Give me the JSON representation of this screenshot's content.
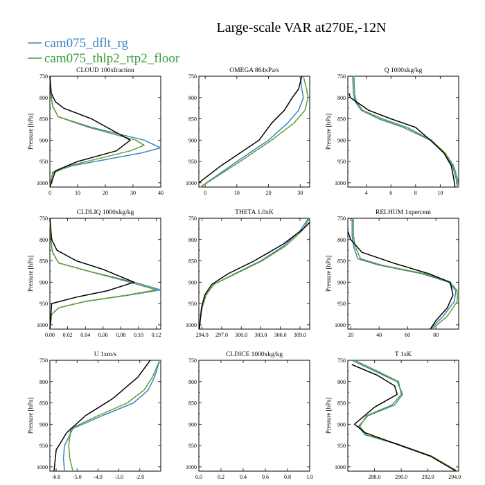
{
  "figure": {
    "title": "Large-scale VAR at270E,-12N",
    "legend": [
      {
        "label": "cam075_dflt_rg",
        "color": "#3b84bf"
      },
      {
        "label": "cam075_thlp2_rtp2_floor",
        "color": "#3a9a3a"
      }
    ]
  },
  "colors": {
    "series1": "#3b84bf",
    "series2": "#3a9a3a",
    "series2_dash": "#d4a017",
    "reference": "#000000"
  },
  "chart_data": [
    {
      "type": "line",
      "title": "CLOUD  100xfraction",
      "ylabel": "Pressure [hPa]",
      "xlim": [
        0,
        40
      ],
      "ylim": [
        1010,
        750
      ],
      "ylim_inverted": true,
      "xticks": [
        0,
        10,
        20,
        30,
        40
      ],
      "xtick_labels": [
        "0",
        "10",
        "20",
        "30",
        "40"
      ],
      "yticks": [
        750,
        800,
        850,
        900,
        950,
        1000
      ],
      "ytick_labels": [
        "750",
        "800",
        "850",
        "900",
        "950",
        "1000"
      ],
      "series": [
        {
          "name": "cam075_dflt_rg",
          "color": "#3b84bf",
          "x": [
            0,
            0.5,
            1,
            3,
            15,
            34,
            40,
            33,
            8,
            1,
            0
          ],
          "y": [
            750,
            800,
            820,
            845,
            870,
            900,
            918,
            930,
            960,
            975,
            1010
          ]
        },
        {
          "name": "cam075_thlp2_rtp2_floor",
          "color": "#3a9a3a",
          "dash": true,
          "x": [
            0,
            0.5,
            1,
            3,
            14,
            31,
            34,
            29,
            7,
            1,
            0
          ],
          "y": [
            750,
            800,
            820,
            845,
            870,
            900,
            912,
            925,
            960,
            978,
            1010
          ]
        },
        {
          "color": "#000000",
          "x": [
            0,
            0.5,
            2,
            5,
            15,
            29,
            24,
            10,
            2,
            0
          ],
          "y": [
            750,
            790,
            810,
            825,
            850,
            900,
            925,
            950,
            972,
            1010
          ]
        }
      ]
    },
    {
      "type": "line",
      "title": "OMEGA  864xPa/s",
      "ylabel": "",
      "xlim": [
        -2,
        33
      ],
      "ylim": [
        1010,
        750
      ],
      "ylim_inverted": true,
      "xticks": [
        0,
        10,
        20,
        30
      ],
      "xtick_labels": [
        "0",
        "10",
        "20",
        "30"
      ],
      "yticks": [
        750,
        800,
        850,
        900,
        950,
        1000
      ],
      "ytick_labels": [
        "750",
        "800",
        "850",
        "900",
        "950",
        "1000"
      ],
      "series": [
        {
          "name": "cam075_dflt_rg",
          "color": "#3b84bf",
          "x": [
            -1.5,
            10,
            20,
            26,
            29.5,
            31,
            30.5,
            30
          ],
          "y": [
            1010,
            950,
            900,
            860,
            830,
            800,
            780,
            750
          ]
        },
        {
          "name": "cam075_thlp2_rtp2_floor",
          "color": "#3a9a3a",
          "dash": true,
          "x": [
            -1.5,
            11,
            21,
            28,
            31.5,
            32.5,
            32,
            31
          ],
          "y": [
            1010,
            950,
            900,
            860,
            830,
            800,
            780,
            750
          ]
        },
        {
          "color": "#000000",
          "x": [
            -2,
            5,
            12,
            17,
            21,
            25,
            27.5,
            29.5,
            30.5
          ],
          "y": [
            1000,
            960,
            925,
            900,
            860,
            830,
            800,
            780,
            750
          ]
        }
      ]
    },
    {
      "type": "line",
      "title": "Q  1000xkg/kg",
      "ylabel": "Pressure [hPa]",
      "xlim": [
        2.5,
        11.5
      ],
      "ylim": [
        1010,
        750
      ],
      "ylim_inverted": true,
      "xticks": [
        4,
        6,
        8,
        10
      ],
      "xtick_labels": [
        "4",
        "6",
        "8",
        "10"
      ],
      "yticks": [
        750,
        800,
        850,
        900,
        950,
        1000
      ],
      "ytick_labels": [
        "750",
        "800",
        "850",
        "900",
        "950",
        "1000"
      ],
      "series": [
        {
          "name": "cam075_dflt_rg",
          "color": "#3b84bf",
          "x": [
            2.9,
            2.95,
            3.1,
            3.6,
            5,
            7,
            9.2,
            10.3,
            11,
            11.3,
            11.4
          ],
          "y": [
            750,
            790,
            810,
            830,
            850,
            870,
            900,
            930,
            960,
            990,
            1010
          ]
        },
        {
          "name": "cam075_thlp2_rtp2_floor",
          "color": "#3a9a3a",
          "dash": true,
          "x": [
            3.0,
            3.05,
            3.2,
            3.7,
            5.3,
            7.3,
            9.3,
            10.4,
            11.1,
            11.4,
            11.5
          ],
          "y": [
            750,
            790,
            810,
            830,
            850,
            870,
            900,
            930,
            960,
            990,
            1010
          ]
        },
        {
          "color": "#000000",
          "x": [
            2.6,
            2.7,
            3.2,
            4.2,
            6,
            8,
            9.2,
            10.3,
            10.9,
            11.1,
            11.2
          ],
          "y": [
            790,
            800,
            810,
            830,
            850,
            870,
            900,
            930,
            960,
            990,
            1010
          ]
        }
      ]
    },
    {
      "type": "line",
      "title": "CLDLIQ  1000xkg/kg",
      "ylabel": "Pressure [hPa]",
      "xlim": [
        0,
        0.125
      ],
      "ylim": [
        1010,
        750
      ],
      "ylim_inverted": true,
      "xticks": [
        0,
        0.02,
        0.04,
        0.06,
        0.08,
        0.1,
        0.12
      ],
      "xtick_labels": [
        "0.00",
        "0.02",
        "0.04",
        "0.06",
        "0.08",
        "0.10",
        "0.12"
      ],
      "yticks": [
        750,
        800,
        850,
        900,
        950,
        1000
      ],
      "ytick_labels": [
        "750",
        "800",
        "850",
        "900",
        "950",
        "1000"
      ],
      "series": [
        {
          "name": "cam075_dflt_rg",
          "color": "#3b84bf",
          "x": [
            0,
            0.001,
            0.003,
            0.01,
            0.045,
            0.095,
            0.125,
            0.09,
            0.04,
            0.01,
            0.002,
            0
          ],
          "y": [
            750,
            800,
            830,
            855,
            875,
            900,
            918,
            930,
            945,
            960,
            975,
            1010
          ]
        },
        {
          "name": "cam075_thlp2_rtp2_floor",
          "color": "#3a9a3a",
          "dash": true,
          "x": [
            0,
            0.001,
            0.003,
            0.01,
            0.045,
            0.09,
            0.12,
            0.088,
            0.04,
            0.01,
            0.002,
            0
          ],
          "y": [
            750,
            800,
            830,
            855,
            875,
            900,
            918,
            930,
            945,
            960,
            975,
            1010
          ]
        },
        {
          "color": "#000000",
          "x": [
            0,
            0.002,
            0.008,
            0.03,
            0.06,
            0.095,
            0.065,
            0.03,
            0.002,
            0
          ],
          "y": [
            750,
            800,
            825,
            850,
            870,
            900,
            920,
            935,
            950,
            1010
          ]
        }
      ]
    },
    {
      "type": "line",
      "title": "THETA  1.0xK",
      "ylabel": "",
      "xlim": [
        293.5,
        310.5
      ],
      "ylim": [
        1010,
        750
      ],
      "ylim_inverted": true,
      "xticks": [
        294,
        297,
        300,
        303,
        306,
        309
      ],
      "xtick_labels": [
        "294.0",
        "297.0",
        "300.0",
        "303.0",
        "306.0",
        "309.0"
      ],
      "yticks": [
        750,
        800,
        850,
        900,
        950,
        1000
      ],
      "ytick_labels": [
        "750",
        "800",
        "850",
        "900",
        "950",
        "1000"
      ],
      "series": [
        {
          "name": "cam075_dflt_rg",
          "color": "#3b84bf",
          "x": [
            293.6,
            293.7,
            294,
            294.6,
            295.8,
            299,
            303,
            306.5,
            309,
            310.3
          ],
          "y": [
            1010,
            990,
            960,
            930,
            905,
            880,
            850,
            815,
            780,
            750
          ]
        },
        {
          "name": "cam075_thlp2_rtp2_floor",
          "color": "#3a9a3a",
          "dash": true,
          "x": [
            293.6,
            293.7,
            294,
            294.6,
            295.8,
            299.2,
            303.2,
            306.8,
            309.3,
            310.5
          ],
          "y": [
            1010,
            990,
            960,
            930,
            905,
            880,
            850,
            815,
            780,
            750
          ]
        },
        {
          "color": "#000000",
          "x": [
            293.6,
            293.7,
            293.9,
            294.4,
            295.5,
            298,
            302,
            306.5,
            309.5,
            310.5
          ],
          "y": [
            1010,
            990,
            960,
            930,
            905,
            880,
            850,
            810,
            775,
            760
          ]
        }
      ]
    },
    {
      "type": "line",
      "title": "RELHUM  1xpercent",
      "ylabel": "Pressure [hPa]",
      "xlim": [
        18,
        96
      ],
      "ylim": [
        1010,
        750
      ],
      "ylim_inverted": true,
      "xticks": [
        20,
        40,
        60,
        80
      ],
      "xtick_labels": [
        "20",
        "40",
        "60",
        "80"
      ],
      "yticks": [
        750,
        800,
        850,
        900,
        950,
        1000
      ],
      "ytick_labels": [
        "750",
        "800",
        "850",
        "900",
        "950",
        "1000"
      ],
      "series": [
        {
          "name": "cam075_dflt_rg",
          "color": "#3b84bf",
          "x": [
            21,
            21,
            22,
            25,
            40,
            70,
            89,
            94,
            93,
            85,
            76
          ],
          "y": [
            750,
            790,
            815,
            845,
            860,
            880,
            900,
            920,
            945,
            980,
            1010
          ]
        },
        {
          "name": "cam075_thlp2_rtp2_floor",
          "color": "#3a9a3a",
          "dash": true,
          "x": [
            22,
            22,
            23,
            27,
            42,
            72,
            90,
            95,
            95,
            88,
            77
          ],
          "y": [
            750,
            790,
            815,
            845,
            860,
            880,
            900,
            920,
            945,
            980,
            1010
          ]
        },
        {
          "color": "#000000",
          "x": [
            18,
            20,
            28,
            50,
            75,
            90,
            92,
            88,
            80,
            76
          ],
          "y": [
            780,
            800,
            830,
            855,
            880,
            900,
            930,
            960,
            990,
            1010
          ]
        }
      ]
    },
    {
      "type": "line",
      "title": "U  1xm/s",
      "ylabel": "Pressure [hPa]",
      "xlim": [
        -6.3,
        -1.0
      ],
      "ylim": [
        1010,
        750
      ],
      "ylim_inverted": true,
      "xticks": [
        -6,
        -5,
        -4,
        -3,
        -2
      ],
      "xtick_labels": [
        "-6.0",
        "-5.0",
        "-4.0",
        "-3.0",
        "-2.0"
      ],
      "yticks": [
        750,
        800,
        850,
        900,
        950,
        1000
      ],
      "ytick_labels": [
        "750",
        "800",
        "850",
        "900",
        "950",
        "1000"
      ],
      "series": [
        {
          "name": "cam075_dflt_rg",
          "color": "#3b84bf",
          "x": [
            -5.6,
            -5.65,
            -5.6,
            -5.2,
            -3.8,
            -2.3,
            -1.6,
            -1.3,
            -1.05
          ],
          "y": [
            1010,
            980,
            950,
            910,
            880,
            850,
            820,
            790,
            750
          ]
        },
        {
          "name": "cam075_thlp2_rtp2_floor",
          "color": "#3a9a3a",
          "dash": true,
          "x": [
            -5.2,
            -5.35,
            -5.4,
            -5.3,
            -4,
            -2.6,
            -1.8,
            -1.4,
            -1.05
          ],
          "y": [
            1010,
            980,
            950,
            910,
            880,
            850,
            820,
            790,
            750
          ]
        },
        {
          "color": "#000000",
          "x": [
            -6.1,
            -6.0,
            -5.5,
            -4.6,
            -3.3,
            -2.1,
            -1.5
          ],
          "y": [
            1010,
            960,
            920,
            880,
            840,
            790,
            750
          ]
        }
      ]
    },
    {
      "type": "line",
      "title": "CLDICE  1000xkg/kg",
      "ylabel": "",
      "xlim": [
        0,
        1
      ],
      "ylim": [
        1010,
        750
      ],
      "ylim_inverted": true,
      "xticks": [
        0,
        0.2,
        0.4,
        0.6,
        0.8,
        1.0
      ],
      "xtick_labels": [
        "0.0",
        "0.2",
        "0.4",
        "0.6",
        "0.8",
        "1.0"
      ],
      "yticks": [
        750,
        800,
        850,
        900,
        950,
        1000
      ],
      "ytick_labels": [
        "750",
        "800",
        "850",
        "900",
        "950",
        "1000"
      ],
      "series": []
    },
    {
      "type": "line",
      "title": "T  1xK",
      "ylabel": "Pressure [hPa]",
      "xlim": [
        286,
        294.3
      ],
      "ylim": [
        1010,
        750
      ],
      "ylim_inverted": true,
      "xticks": [
        288,
        290,
        292,
        294
      ],
      "xtick_labels": [
        "288.0",
        "290.0",
        "292.0",
        "294.0"
      ],
      "yticks": [
        750,
        800,
        850,
        900,
        950,
        1000
      ],
      "ytick_labels": [
        "750",
        "800",
        "850",
        "900",
        "950",
        "1000"
      ],
      "series": [
        {
          "name": "cam075_dflt_rg",
          "color": "#3b84bf",
          "x": [
            286.3,
            288,
            289.7,
            290.1,
            289.5,
            287.5,
            286.8,
            287.3,
            289.5,
            292.2,
            294.1
          ],
          "y": [
            750,
            775,
            800,
            830,
            855,
            880,
            905,
            925,
            945,
            975,
            1010
          ]
        },
        {
          "name": "cam075_thlp2_rtp2_floor",
          "color": "#3a9a3a",
          "dash": true,
          "x": [
            286.5,
            288.2,
            289.8,
            290,
            289.3,
            287.4,
            286.9,
            287.4,
            289.6,
            292.3,
            294.2
          ],
          "y": [
            750,
            775,
            800,
            830,
            855,
            880,
            905,
            925,
            945,
            975,
            1010
          ]
        },
        {
          "color": "#000000",
          "x": [
            286.3,
            288.2,
            289.5,
            289.7,
            288,
            286.5,
            287.3,
            289.5,
            292.2,
            294.1
          ],
          "y": [
            760,
            785,
            810,
            830,
            860,
            900,
            920,
            945,
            975,
            1010
          ]
        }
      ]
    }
  ]
}
